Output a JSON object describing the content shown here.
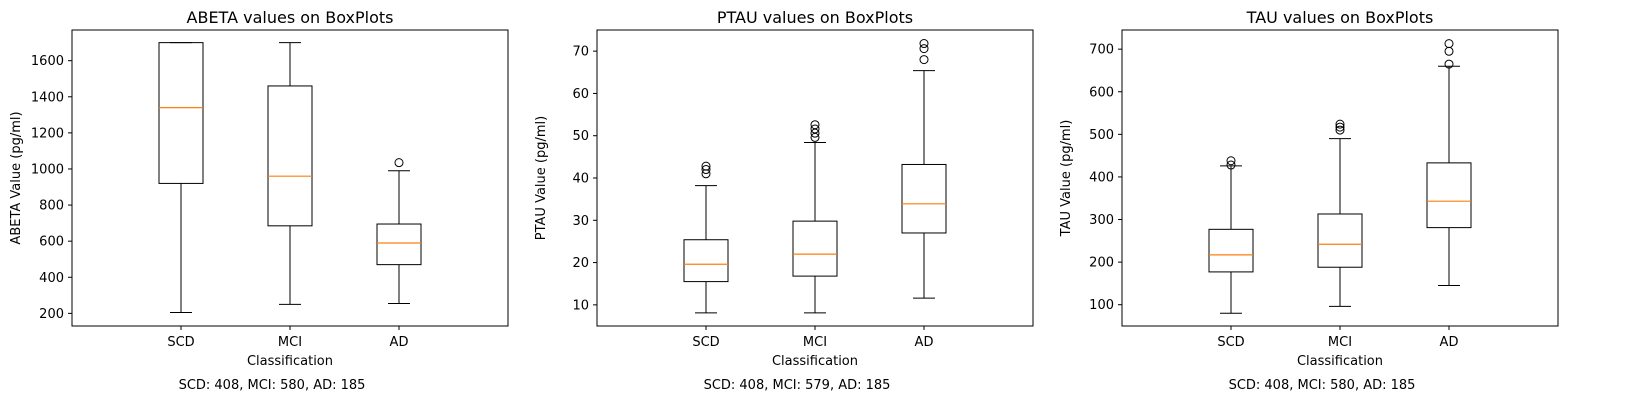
{
  "chart_data": [
    {
      "type": "box",
      "title": "ABETA values on BoxPlots",
      "xlabel": "Classification",
      "ylabel": "ABETA Value (pg/ml)",
      "caption": "SCD: 408, MCI: 580, AD: 185",
      "categories": [
        "SCD",
        "MCI",
        "AD"
      ],
      "ylim": [
        130,
        1770
      ],
      "yticks": [
        200,
        400,
        600,
        800,
        1000,
        1200,
        1400,
        1600
      ],
      "boxes": [
        {
          "whisker_low": 205,
          "q1": 920,
          "median": 1340,
          "q3": 1700,
          "whisker_high": 1700,
          "outliers": []
        },
        {
          "whisker_low": 250,
          "q1": 685,
          "median": 960,
          "q3": 1460,
          "whisker_high": 1700,
          "outliers": []
        },
        {
          "whisker_low": 255,
          "q1": 470,
          "median": 590,
          "q3": 695,
          "whisker_high": 990,
          "outliers": [
            1035
          ]
        }
      ]
    },
    {
      "type": "box",
      "title": "PTAU values on BoxPlots",
      "xlabel": "Classification",
      "ylabel": "PTAU Value (pg/ml)",
      "caption": "SCD: 408, MCI: 579, AD: 185",
      "categories": [
        "SCD",
        "MCI",
        "AD"
      ],
      "ylim": [
        5,
        75
      ],
      "yticks": [
        10,
        20,
        30,
        40,
        50,
        60,
        70
      ],
      "boxes": [
        {
          "whisker_low": 8.1,
          "q1": 15.5,
          "median": 19.6,
          "q3": 25.4,
          "whisker_high": 38.2,
          "outliers": [
            41.0,
            42.0,
            42.8
          ]
        },
        {
          "whisker_low": 8.1,
          "q1": 16.8,
          "median": 22.0,
          "q3": 29.8,
          "whisker_high": 48.4,
          "outliers": [
            49.6,
            50.6,
            51.6,
            52.6
          ]
        },
        {
          "whisker_low": 11.6,
          "q1": 27.0,
          "median": 33.9,
          "q3": 43.2,
          "whisker_high": 65.4,
          "outliers": [
            68.0,
            70.6,
            71.8
          ]
        }
      ]
    },
    {
      "type": "box",
      "title": "TAU values on BoxPlots",
      "xlabel": "Classification",
      "ylabel": "TAU Value (pg/ml)",
      "caption": "SCD: 408, MCI: 580, AD: 185",
      "categories": [
        "SCD",
        "MCI",
        "AD"
      ],
      "ylim": [
        50,
        745
      ],
      "yticks": [
        100,
        200,
        300,
        400,
        500,
        600,
        700
      ],
      "boxes": [
        {
          "whisker_low": 80,
          "q1": 177,
          "median": 217,
          "q3": 277,
          "whisker_high": 426,
          "outliers": [
            428,
            438
          ]
        },
        {
          "whisker_low": 96,
          "q1": 188,
          "median": 242,
          "q3": 313,
          "whisker_high": 490,
          "outliers": [
            510,
            517,
            524
          ]
        },
        {
          "whisker_low": 145,
          "q1": 281,
          "median": 343,
          "q3": 433,
          "whisker_high": 660,
          "outliers": [
            665,
            695,
            713
          ]
        }
      ]
    }
  ],
  "colors": {
    "box": "#000000",
    "median": "#ff7f0e",
    "background": "#ffffff"
  }
}
